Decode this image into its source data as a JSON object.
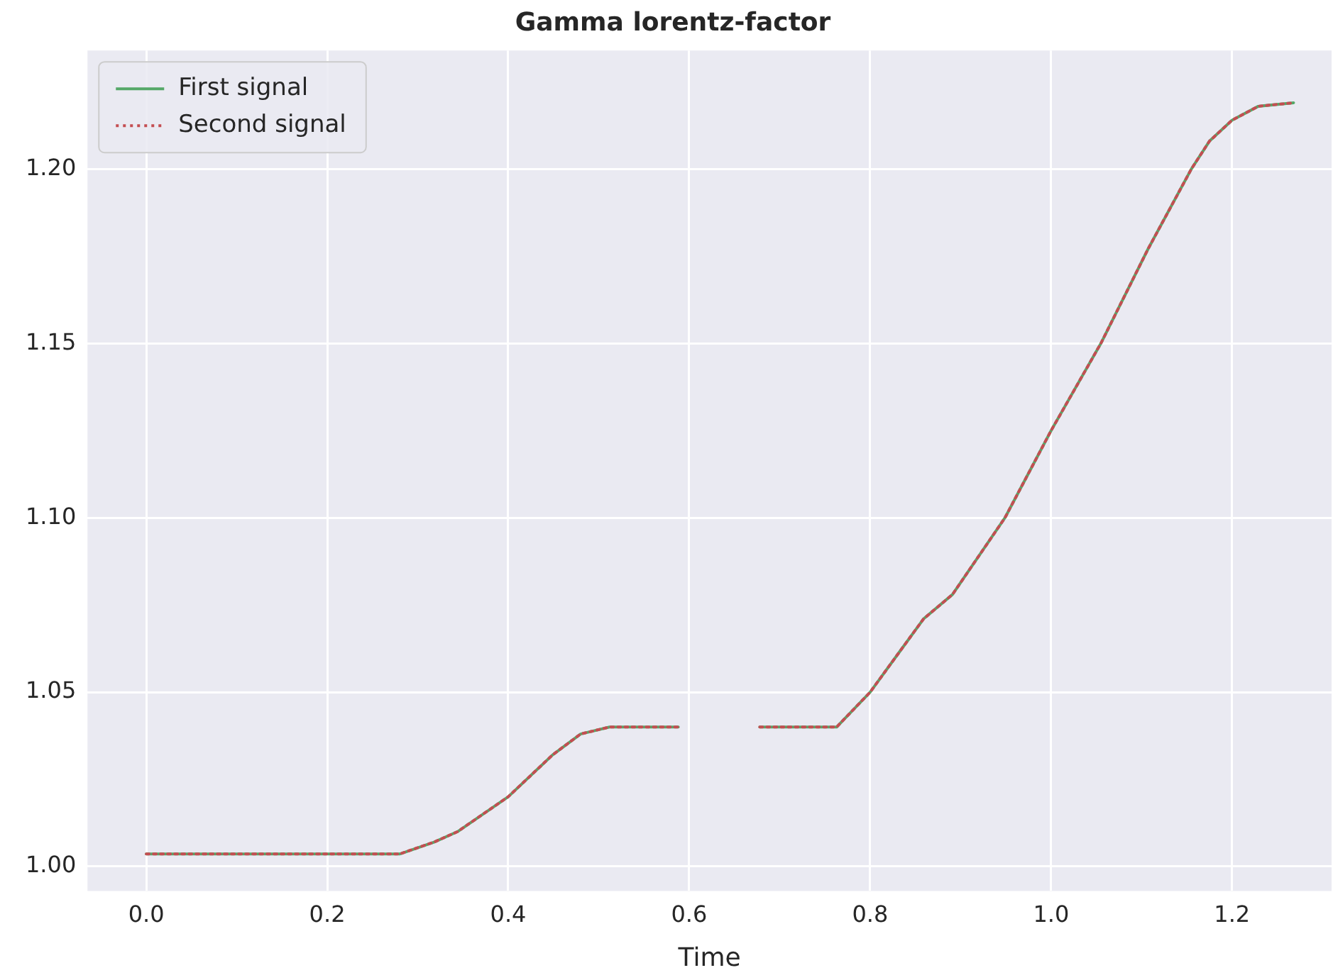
{
  "chart_data": {
    "type": "line",
    "title": "Gamma lorentz-factor",
    "xlabel": "Time",
    "x": [
      0,
      0.1,
      0.2,
      0.28,
      0.318,
      0.344,
      0.4,
      0.449,
      0.48,
      0.512,
      0.55,
      0.588,
      0.63,
      0.678,
      0.72,
      0.763,
      0.8,
      0.859,
      0.891,
      0.949,
      1.0,
      1.055,
      1.107,
      1.155,
      1.175,
      1.2,
      1.229,
      1.268
    ],
    "series": [
      {
        "name": "First signal",
        "color": "#55a868",
        "line_style": "solid",
        "values": [
          1.0036,
          1.0036,
          1.0036,
          1.0036,
          1.007,
          1.01,
          1.02,
          1.032,
          1.038,
          1.04,
          1.04,
          1.04,
          null,
          1.04,
          1.04,
          1.04,
          1.05,
          1.071,
          1.078,
          1.1,
          1.125,
          1.15,
          1.177,
          1.2,
          1.208,
          1.214,
          1.218,
          1.219
        ]
      },
      {
        "name": "Second signal",
        "color": "#c44e52",
        "line_style": "dotted",
        "values": [
          1.0036,
          1.0036,
          1.0036,
          1.0036,
          1.007,
          1.01,
          1.02,
          1.032,
          1.038,
          1.04,
          1.04,
          1.04,
          null,
          1.04,
          1.04,
          1.04,
          1.05,
          1.071,
          1.078,
          1.1,
          1.125,
          1.15,
          1.177,
          1.2,
          1.208,
          1.214,
          1.218,
          1.219
        ]
      }
    ],
    "xlim": [
      -0.065,
      1.31
    ],
    "xticks": [
      {
        "value": 0,
        "label": "0.0"
      },
      {
        "value": 0.2,
        "label": "0.2"
      },
      {
        "value": 0.4,
        "label": "0.4"
      },
      {
        "value": 0.6,
        "label": "0.6"
      },
      {
        "value": 0.8,
        "label": "0.8"
      },
      {
        "value": 1,
        "label": "1.0"
      },
      {
        "value": 1.2,
        "label": "1.2"
      }
    ],
    "ylim": [
      0.993,
      1.234
    ],
    "yticks": [
      {
        "value": 1,
        "label": "1.00"
      },
      {
        "value": 1.05,
        "label": "1.05"
      },
      {
        "value": 1.1,
        "label": "1.10"
      },
      {
        "value": 1.15,
        "label": "1.15"
      },
      {
        "value": 1.2,
        "label": "1.20"
      }
    ],
    "grid": true,
    "legend": "top left",
    "marker": "none"
  }
}
